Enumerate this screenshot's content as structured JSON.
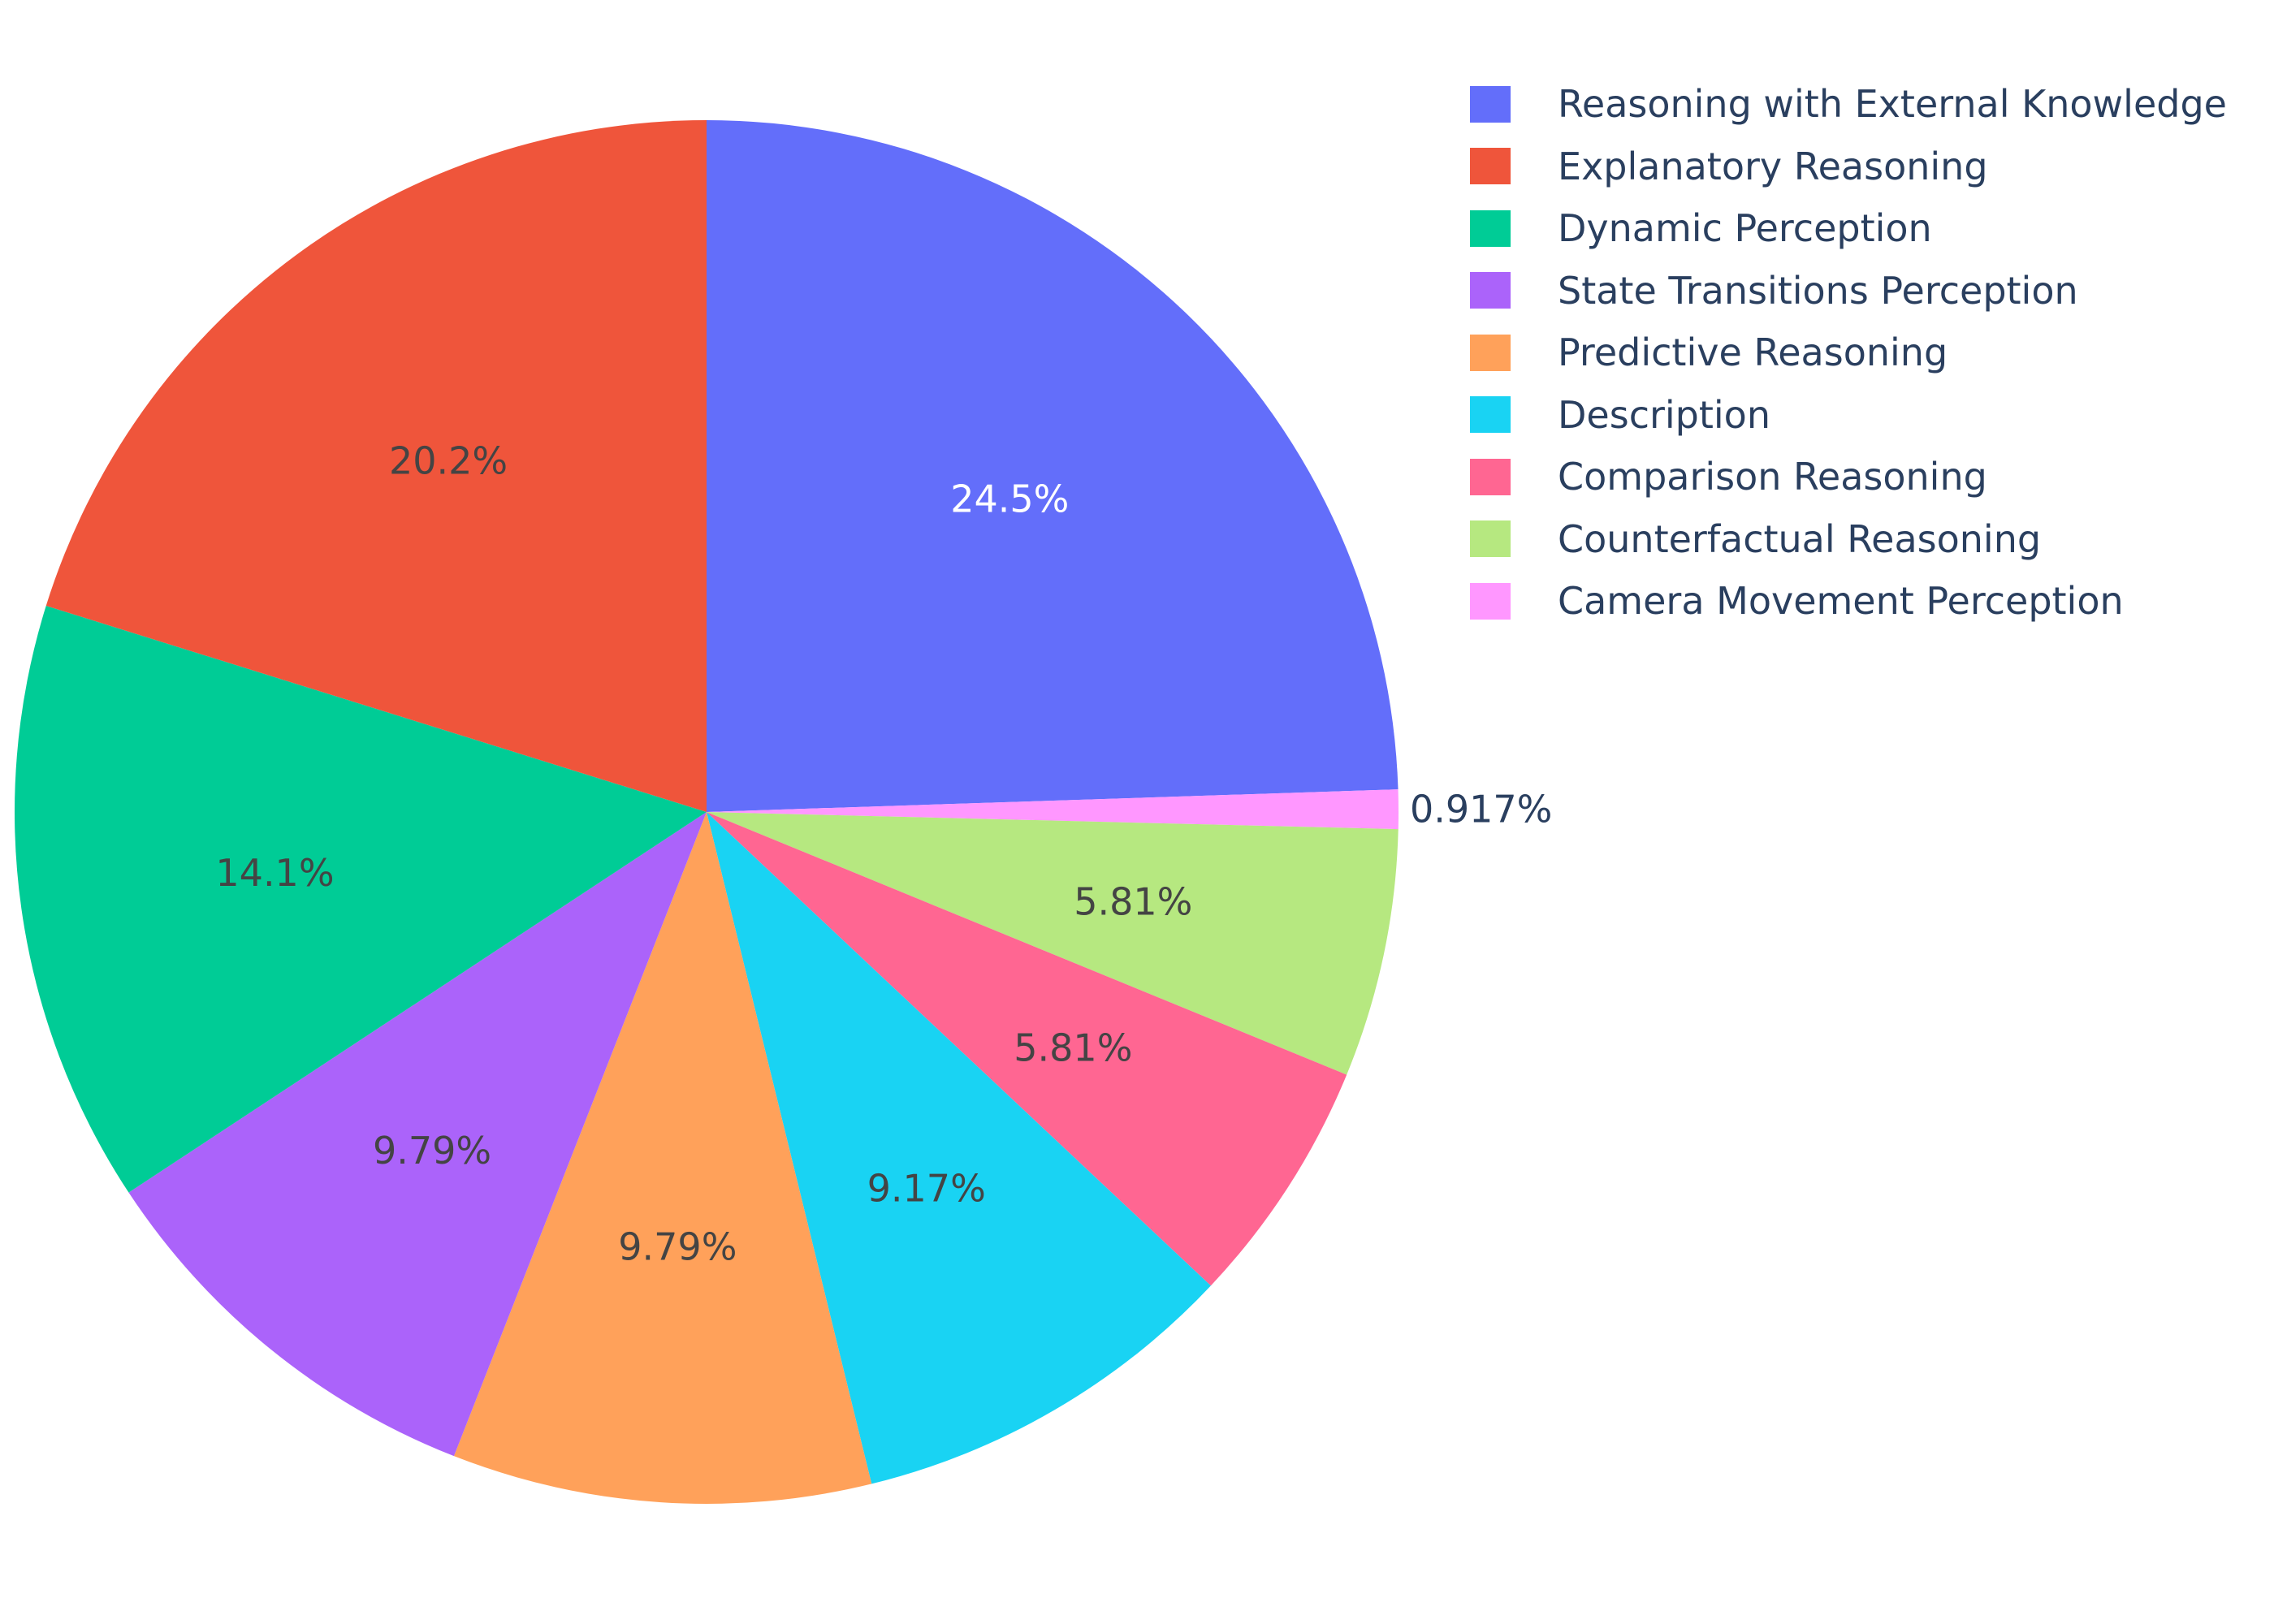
{
  "chart_data": {
    "type": "pie",
    "direction": "clockwise",
    "sort": "descending",
    "legend_position": "top-right",
    "label_color_dark": "#444444",
    "label_color_light": "#ffffff",
    "outside_label_color": "#2a3f5f",
    "slices": [
      {
        "name": "Reasoning with External Knowledge",
        "percent_label": "24.5%",
        "value": 24.5,
        "color": "#636efa",
        "label_color": "#ffffff"
      },
      {
        "name": "Camera Movement Perception",
        "percent_label": "0.917%",
        "value": 0.917,
        "color": "#ff97ff",
        "label_outside": true
      },
      {
        "name": "Counterfactual Reasoning",
        "percent_label": "5.81%",
        "value": 5.81,
        "color": "#b6e880"
      },
      {
        "name": "Comparison Reasoning",
        "percent_label": "5.81%",
        "value": 5.81,
        "color": "#ff6692"
      },
      {
        "name": "Description",
        "percent_label": "9.17%",
        "value": 9.17,
        "color": "#19d3f3"
      },
      {
        "name": "Predictive Reasoning",
        "percent_label": "9.79%",
        "value": 9.79,
        "color": "#ffa15a"
      },
      {
        "name": "State Transitions Perception",
        "percent_label": "9.79%",
        "value": 9.79,
        "color": "#ab63fa"
      },
      {
        "name": "Dynamic Perception",
        "percent_label": "14.1%",
        "value": 14.1,
        "color": "#00cc96"
      },
      {
        "name": "Explanatory Reasoning",
        "percent_label": "20.2%",
        "value": 20.2,
        "color": "#ef553b"
      }
    ],
    "legend": [
      {
        "name": "Reasoning with External Knowledge",
        "color": "#636efa"
      },
      {
        "name": "Explanatory Reasoning",
        "color": "#ef553b"
      },
      {
        "name": "Dynamic Perception",
        "color": "#00cc96"
      },
      {
        "name": "State Transitions Perception",
        "color": "#ab63fa"
      },
      {
        "name": "Predictive Reasoning",
        "color": "#ffa15a"
      },
      {
        "name": "Description",
        "color": "#19d3f3"
      },
      {
        "name": "Comparison Reasoning",
        "color": "#ff6692"
      },
      {
        "name": "Counterfactual Reasoning",
        "color": "#b6e880"
      },
      {
        "name": "Camera Movement Perception",
        "color": "#ff97ff"
      }
    ]
  }
}
